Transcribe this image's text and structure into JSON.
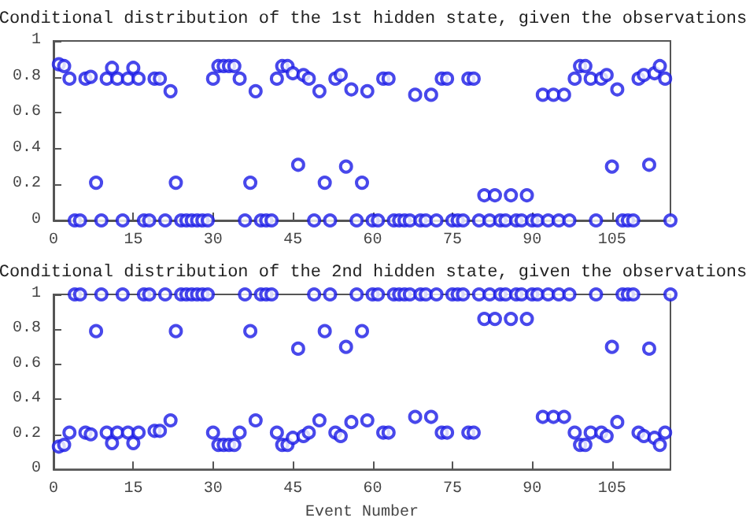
{
  "chart_data": [
    {
      "type": "scatter",
      "title": "Conditional distribution of the 1st hidden state, given the observations",
      "marker": "circle",
      "grid": false,
      "xlim": [
        0,
        116
      ],
      "xticks": [
        0,
        15,
        30,
        45,
        60,
        75,
        90,
        105
      ],
      "ylim": [
        0,
        1
      ],
      "yticks": [
        0,
        0.2,
        0.4,
        0.6,
        0.8,
        1
      ],
      "x": [
        1,
        2,
        3,
        4,
        5,
        6,
        7,
        8,
        9,
        10,
        11,
        12,
        13,
        14,
        15,
        16,
        17,
        18,
        19,
        20,
        21,
        22,
        23,
        24,
        25,
        26,
        27,
        28,
        29,
        30,
        31,
        32,
        33,
        34,
        35,
        36,
        37,
        38,
        39,
        40,
        41,
        42,
        43,
        44,
        45,
        46,
        47,
        48,
        49,
        50,
        51,
        52,
        53,
        54,
        55,
        56,
        57,
        58,
        59,
        60,
        61,
        62,
        63,
        64,
        65,
        66,
        67,
        68,
        69,
        70,
        71,
        72,
        73,
        74,
        75,
        76,
        77,
        78,
        79,
        80,
        81,
        82,
        83,
        84,
        85,
        86,
        87,
        88,
        89,
        90,
        91,
        92,
        93,
        94,
        95,
        96,
        97,
        98,
        99,
        100,
        101,
        102,
        103,
        104,
        105,
        106,
        107,
        108,
        109,
        110,
        111,
        112,
        113,
        114,
        115,
        116
      ],
      "series": [
        {
          "color": "#1a1ae6",
          "values": [
            0.87,
            0.86,
            0.79,
            0,
            0,
            0.79,
            0.8,
            0.21,
            0,
            0.79,
            0.85,
            0.79,
            0,
            0.79,
            0.85,
            0.79,
            0,
            0,
            0.79,
            0.79,
            0,
            0.72,
            0.21,
            0,
            0,
            0,
            0,
            0,
            0,
            0.79,
            0.86,
            0.86,
            0.86,
            0.86,
            0.79,
            0,
            0.21,
            0.72,
            0,
            0,
            0,
            0.79,
            0.86,
            0.86,
            0.82,
            0.31,
            0.81,
            0.79,
            0,
            0.72,
            0.21,
            0,
            0.79,
            0.81,
            0.3,
            0.73,
            0,
            0.21,
            0.72,
            0,
            0,
            0.79,
            0.79,
            0,
            0,
            0,
            0,
            0.7,
            0,
            0,
            0.7,
            0,
            0.79,
            0.79,
            0,
            0,
            0,
            0.79,
            0.79,
            0,
            0.14,
            0,
            0.14,
            0,
            0,
            0.14,
            0,
            0,
            0.14,
            0,
            0,
            0.7,
            0,
            0.7,
            0,
            0.7,
            0,
            0.79,
            0.86,
            0.86,
            0.79,
            0,
            0.79,
            0.81,
            0.3,
            0.73,
            0,
            0,
            0,
            0.79,
            0.81,
            0.31,
            0.82,
            0.86,
            0.79,
            0
          ]
        }
      ]
    },
    {
      "type": "scatter",
      "title": "Conditional distribution of the 2nd hidden state, given the observations",
      "xlabel": "Event Number",
      "marker": "circle",
      "grid": false,
      "xlim": [
        0,
        116
      ],
      "xticks": [
        0,
        15,
        30,
        45,
        60,
        75,
        90,
        105
      ],
      "ylim": [
        0,
        1
      ],
      "yticks": [
        0,
        0.2,
        0.4,
        0.6,
        0.8,
        1
      ],
      "x": [
        1,
        2,
        3,
        4,
        5,
        6,
        7,
        8,
        9,
        10,
        11,
        12,
        13,
        14,
        15,
        16,
        17,
        18,
        19,
        20,
        21,
        22,
        23,
        24,
        25,
        26,
        27,
        28,
        29,
        30,
        31,
        32,
        33,
        34,
        35,
        36,
        37,
        38,
        39,
        40,
        41,
        42,
        43,
        44,
        45,
        46,
        47,
        48,
        49,
        50,
        51,
        52,
        53,
        54,
        55,
        56,
        57,
        58,
        59,
        60,
        61,
        62,
        63,
        64,
        65,
        66,
        67,
        68,
        69,
        70,
        71,
        72,
        73,
        74,
        75,
        76,
        77,
        78,
        79,
        80,
        81,
        82,
        83,
        84,
        85,
        86,
        87,
        88,
        89,
        90,
        91,
        92,
        93,
        94,
        95,
        96,
        97,
        98,
        99,
        100,
        101,
        102,
        103,
        104,
        105,
        106,
        107,
        108,
        109,
        110,
        111,
        112,
        113,
        114,
        115,
        116
      ],
      "series": [
        {
          "color": "#1a1ae6",
          "values": [
            0.13,
            0.14,
            0.21,
            1,
            1,
            0.21,
            0.2,
            0.79,
            1,
            0.21,
            0.15,
            0.21,
            1,
            0.21,
            0.15,
            0.21,
            1,
            1,
            0.22,
            0.22,
            1,
            0.28,
            0.79,
            1,
            1,
            1,
            1,
            1,
            1,
            0.21,
            0.14,
            0.14,
            0.14,
            0.14,
            0.21,
            1,
            0.79,
            0.28,
            1,
            1,
            1,
            0.21,
            0.14,
            0.14,
            0.18,
            0.69,
            0.19,
            0.21,
            1,
            0.28,
            0.79,
            1,
            0.21,
            0.19,
            0.7,
            0.27,
            1,
            0.79,
            0.28,
            1,
            1,
            0.21,
            0.21,
            1,
            1,
            1,
            1,
            0.3,
            1,
            1,
            0.3,
            1,
            0.21,
            0.21,
            1,
            1,
            1,
            0.21,
            0.21,
            1,
            0.86,
            1,
            0.86,
            1,
            1,
            0.86,
            1,
            1,
            0.86,
            1,
            1,
            0.3,
            1,
            0.3,
            1,
            0.3,
            1,
            0.21,
            0.14,
            0.14,
            0.21,
            1,
            0.21,
            0.19,
            0.7,
            0.27,
            1,
            1,
            1,
            0.21,
            0.19,
            0.69,
            0.18,
            0.14,
            0.21,
            1
          ]
        }
      ]
    }
  ]
}
